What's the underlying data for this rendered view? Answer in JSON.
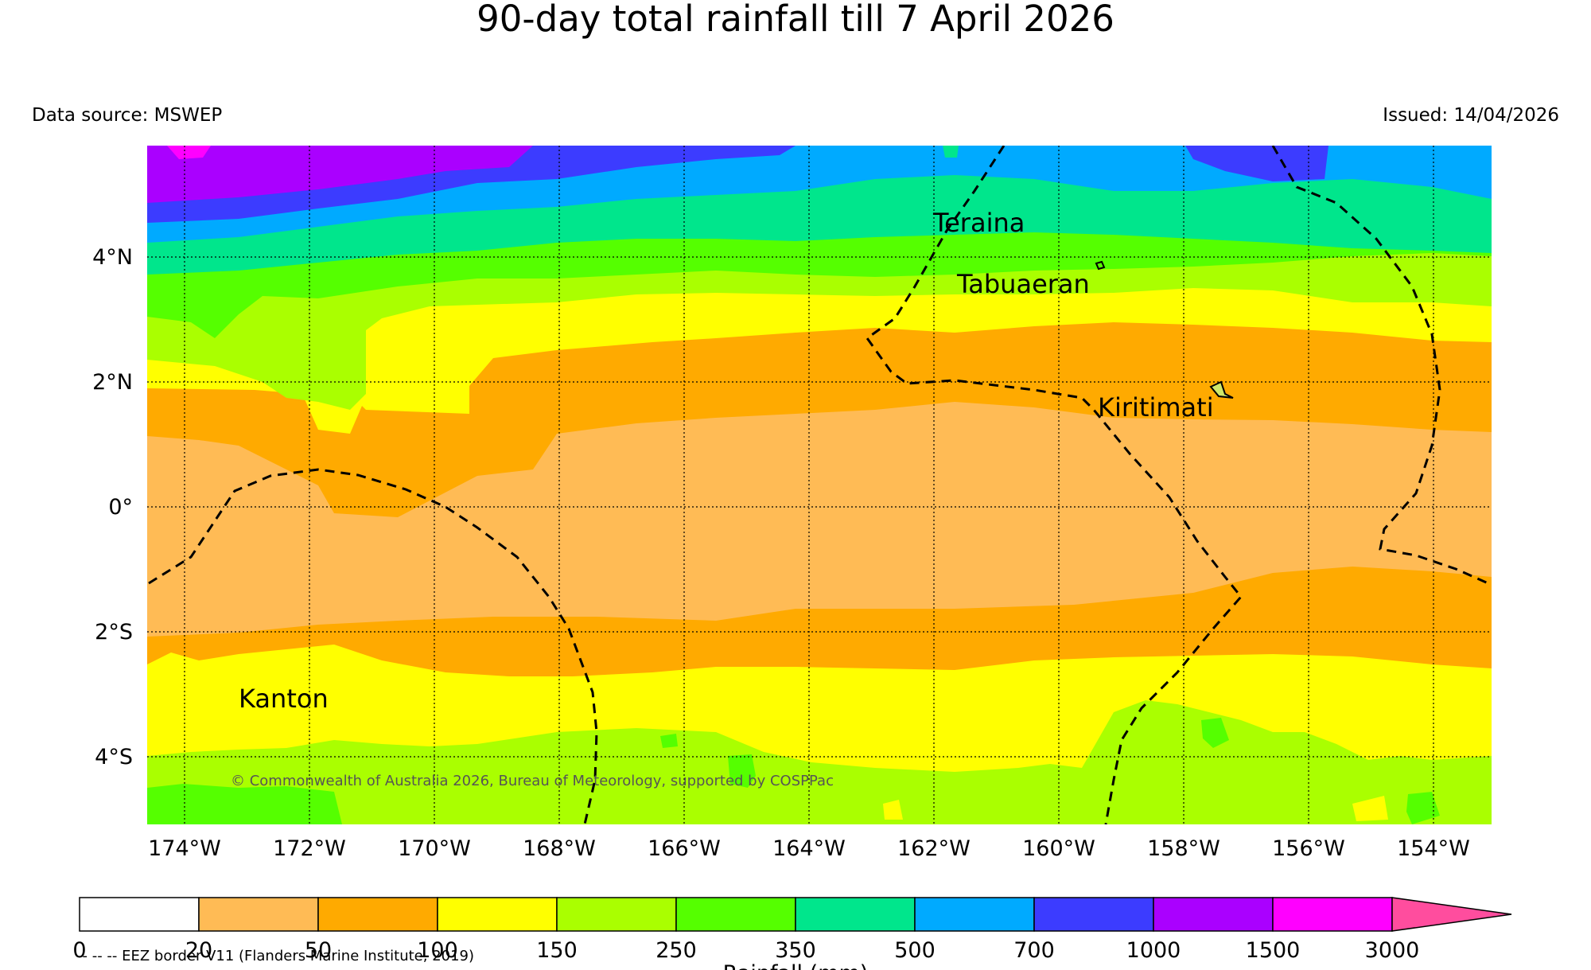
{
  "header": {
    "title": "90-day total rainfall till 7 April 2026",
    "source": "Data source: MSWEP",
    "issued": "Issued: 14/04/2026"
  },
  "map": {
    "lon_labels": [
      "174°W",
      "172°W",
      "170°W",
      "168°W",
      "166°W",
      "164°W",
      "162°W",
      "160°W",
      "158°W",
      "156°W",
      "154°W"
    ],
    "lat_labels": [
      "4°N",
      "2°N",
      "0°",
      "2°S",
      "4°S"
    ],
    "places": [
      "Teraina",
      "Tabuaeran",
      "Kiritimati",
      "Kanton"
    ],
    "copyright": "© Commonwealth of Australia 2026, Bureau of Meteorology, supported by COSPPac",
    "eez_legend": "-- -- -- EEZ border V11 (Flanders Marine Institute, 2019)"
  },
  "colorbar": {
    "ticks": [
      "0",
      "20",
      "50",
      "100",
      "150",
      "250",
      "350",
      "500",
      "700",
      "1000",
      "1500",
      "3000"
    ],
    "colors": [
      "#ffffff",
      "#ffbb55",
      "#ffaa00",
      "#ffff00",
      "#aaff00",
      "#55ff00",
      "#00e68c",
      "#00aaff",
      "#3c3cff",
      "#aa00ff",
      "#ff00ff"
    ],
    "extend_color": "#ff4d9e",
    "label": "Rainfall (mm)"
  }
}
